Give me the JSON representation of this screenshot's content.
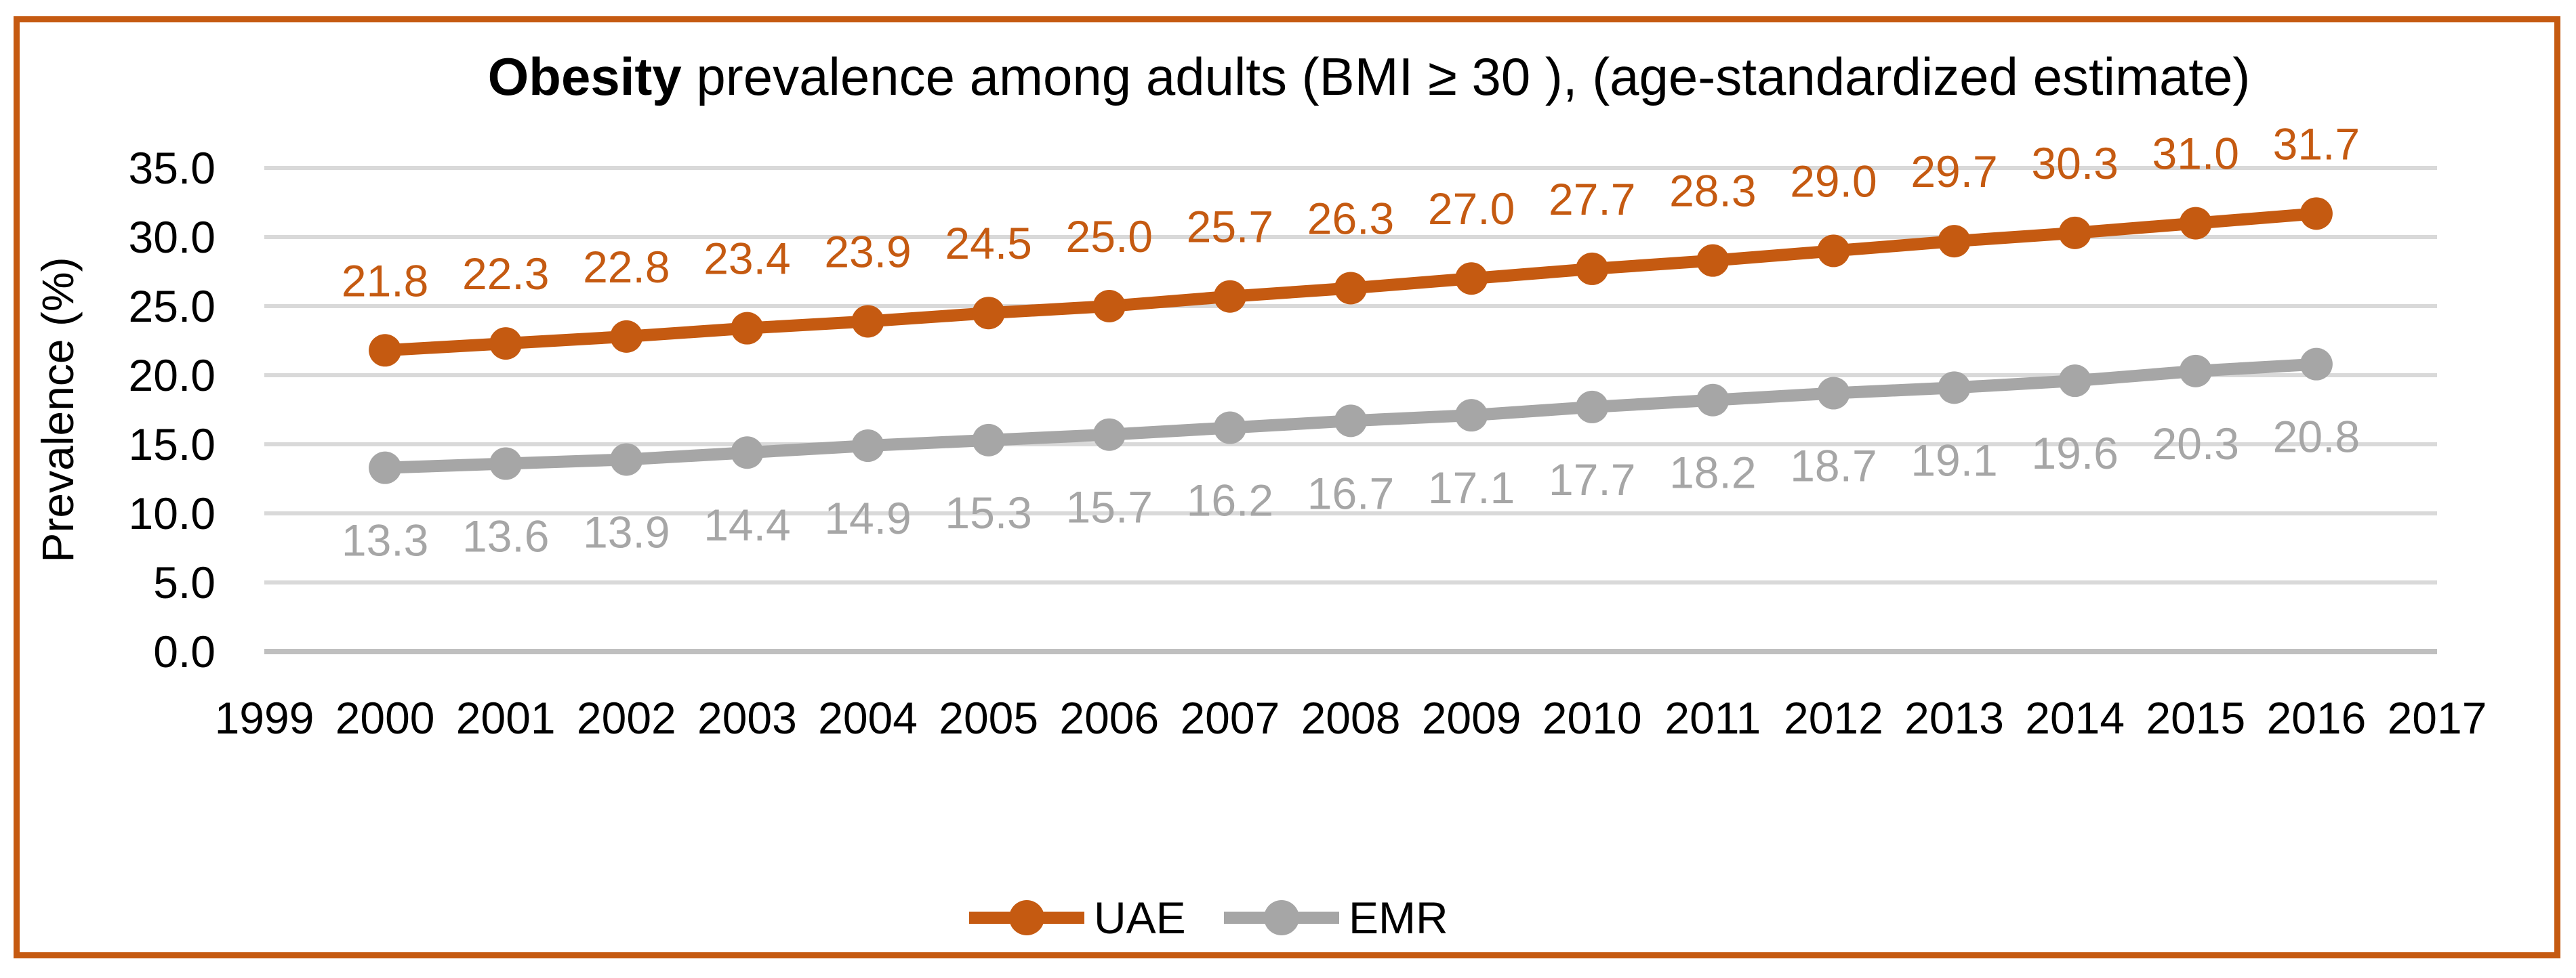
{
  "chart_data": {
    "type": "line",
    "title_bold": "Obesity",
    "title_rest": " prevalence among adults (BMI ≥ 30 ), (age-standardized estimate)",
    "ylabel": "Prevalence (%)",
    "xlabel": "",
    "x_tick_labels": [
      "1999",
      "2000",
      "2001",
      "2002",
      "2003",
      "2004",
      "2005",
      "2006",
      "2007",
      "2008",
      "2009",
      "2010",
      "2011",
      "2012",
      "2013",
      "2014",
      "2015",
      "2016",
      "2017"
    ],
    "y_tick_labels": [
      "0.0",
      "5.0",
      "10.0",
      "15.0",
      "20.0",
      "25.0",
      "30.0",
      "35.0"
    ],
    "ylim": [
      0,
      35
    ],
    "x_years": [
      2000,
      2001,
      2002,
      2003,
      2004,
      2005,
      2006,
      2007,
      2008,
      2009,
      2010,
      2011,
      2012,
      2013,
      2014,
      2015,
      2016
    ],
    "series": [
      {
        "name": "UAE",
        "color": "#C55A11",
        "label_position": "above",
        "values": [
          21.8,
          22.3,
          22.8,
          23.4,
          23.9,
          24.5,
          25.0,
          25.7,
          26.3,
          27.0,
          27.7,
          28.3,
          29.0,
          29.7,
          30.3,
          31.0,
          31.7
        ]
      },
      {
        "name": "EMR",
        "color": "#A6A6A6",
        "label_position": "below",
        "values": [
          13.3,
          13.6,
          13.9,
          14.4,
          14.9,
          15.3,
          15.7,
          16.2,
          16.7,
          17.1,
          17.7,
          18.2,
          18.7,
          19.1,
          19.6,
          20.3,
          20.8
        ]
      }
    ],
    "grid": true,
    "legend_position": "bottom",
    "colors": {
      "frame": "#C55A11",
      "gridline": "#D9D9D9",
      "axis_line": "#BFBFBF",
      "text": "#000000"
    }
  }
}
